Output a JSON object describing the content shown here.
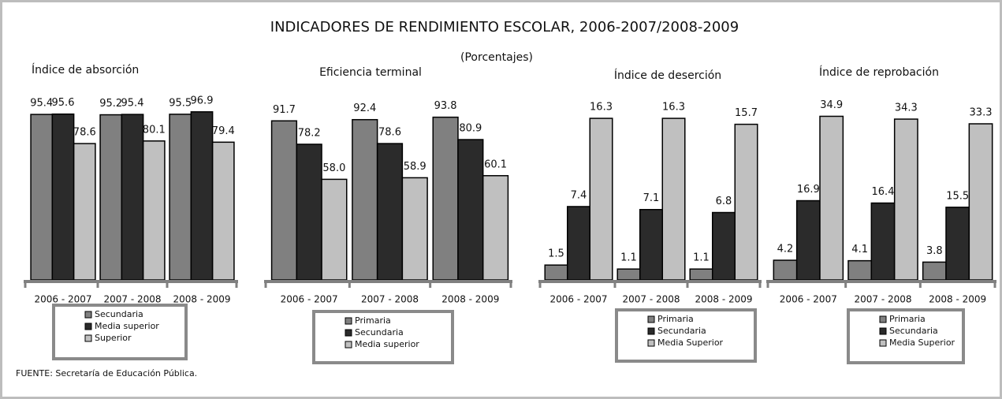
{
  "title": "INDICADORES DE RENDIMIENTO ESCOLAR, 2006-2007/2008-2009",
  "subtitle": "(Porcentajes)",
  "source": "FUENTE: Secretaría de Educación Pública.",
  "chart_data": [
    {
      "type": "bar",
      "title": "Índice de absorción",
      "categories": [
        "2006 - 2007",
        "2007 - 2008",
        "2008 - 2009"
      ],
      "ylim": [
        0,
        100
      ],
      "series": [
        {
          "name": "Secundaria",
          "color": "#808080",
          "values": [
            95.4,
            95.2,
            95.5
          ],
          "value_labels": [
            "95.4",
            "95.2",
            "95.5"
          ]
        },
        {
          "name": "Media superior",
          "color": "#2b2b2b",
          "values": [
            95.6,
            95.4,
            96.9
          ],
          "value_labels": [
            "95.6",
            "95.4",
            "96.9"
          ]
        },
        {
          "name": "Superior",
          "color": "#c0c0c0",
          "values": [
            78.6,
            80.1,
            79.4
          ],
          "value_labels": [
            "78.6",
            "80.1",
            "79.4"
          ]
        }
      ]
    },
    {
      "type": "bar",
      "title": "Eficiencia terminal",
      "categories": [
        "2006 - 2007",
        "2007 - 2008",
        "2008 - 2009"
      ],
      "ylim": [
        0,
        100
      ],
      "series": [
        {
          "name": "Primaria",
          "color": "#808080",
          "values": [
            91.7,
            92.4,
            93.8
          ],
          "value_labels": [
            "91.7",
            "92.4",
            "93.8"
          ]
        },
        {
          "name": "Secundaria",
          "color": "#2b2b2b",
          "values": [
            78.2,
            78.6,
            80.9
          ],
          "value_labels": [
            "78.2",
            "78.6",
            "80.9"
          ]
        },
        {
          "name": "Media superior",
          "color": "#c0c0c0",
          "values": [
            58.0,
            58.9,
            60.1
          ],
          "value_labels": [
            "58.0",
            "58.9",
            "60.1"
          ]
        }
      ]
    },
    {
      "type": "bar",
      "title": "Índice de deserción",
      "categories": [
        "2006 - 2007",
        "2007 - 2008",
        "2008 - 2009"
      ],
      "ylim": [
        0,
        17.5
      ],
      "series": [
        {
          "name": "Primaria",
          "color": "#808080",
          "values": [
            1.5,
            1.1,
            1.1
          ],
          "value_labels": [
            "1.5",
            "1.1",
            "1.1"
          ]
        },
        {
          "name": "Secundaria",
          "color": "#2b2b2b",
          "values": [
            7.4,
            7.1,
            6.8
          ],
          "value_labels": [
            "7.4",
            "7.1",
            "6.8"
          ]
        },
        {
          "name": "Media Superior",
          "color": "#c0c0c0",
          "values": [
            16.3,
            16.3,
            15.7
          ],
          "value_labels": [
            "16.3",
            "16.3",
            "15.7"
          ]
        }
      ]
    },
    {
      "type": "bar",
      "title": "Índice de reprobación",
      "categories": [
        "2006 - 2007",
        "2007 - 2008",
        "2008 - 2009"
      ],
      "ylim": [
        0,
        37
      ],
      "series": [
        {
          "name": "Primaria",
          "color": "#808080",
          "values": [
            4.2,
            4.1,
            3.8
          ],
          "value_labels": [
            "4.2",
            "4.1",
            "3.8"
          ]
        },
        {
          "name": "Secundaria",
          "color": "#2b2b2b",
          "values": [
            16.9,
            16.4,
            15.5
          ],
          "value_labels": [
            "16.9",
            "16.4",
            "15.5"
          ]
        },
        {
          "name": "Media Superior",
          "color": "#c0c0c0",
          "values": [
            34.9,
            34.3,
            33.3
          ],
          "value_labels": [
            "34.9",
            "34.3",
            "33.3"
          ]
        }
      ]
    }
  ]
}
